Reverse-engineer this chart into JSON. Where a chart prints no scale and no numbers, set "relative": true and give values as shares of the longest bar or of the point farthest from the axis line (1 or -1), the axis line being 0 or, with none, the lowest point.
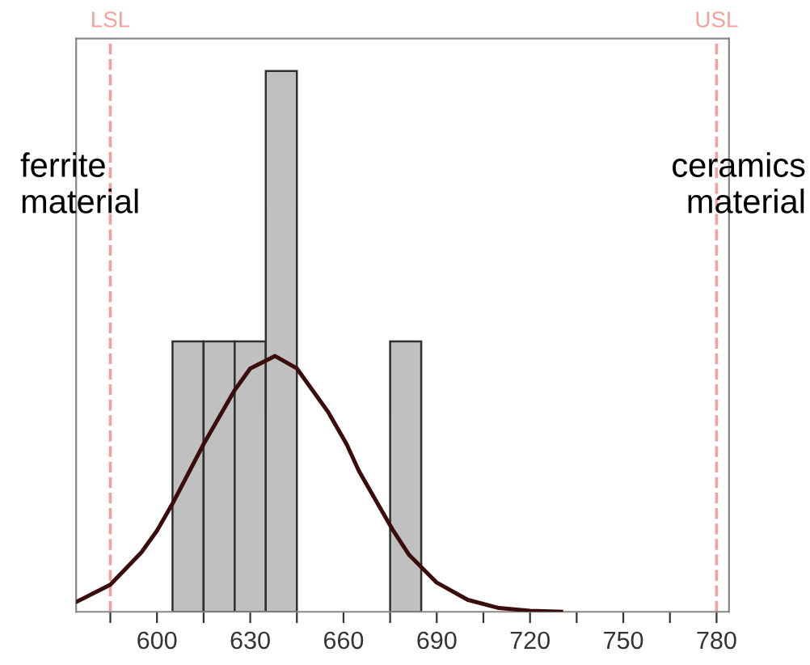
{
  "chart_data": {
    "type": "histogram",
    "relative": true,
    "bins": [
      605,
      615,
      625,
      635,
      645,
      655,
      665,
      675,
      685
    ],
    "values": [
      0.5,
      0.5,
      0.5,
      1,
      0,
      0,
      0,
      0.5
    ],
    "color": "#c0c0c0",
    "series": [
      {
        "type": "line",
        "color": "#3a0c0c",
        "line_style": "solid",
        "x": [
          574,
          585,
          595,
          600,
          605,
          615,
          625,
          630,
          638,
          645,
          655,
          661,
          665,
          676,
          681,
          690,
          700,
          710,
          720,
          730
        ],
        "values": [
          0.018,
          0.05,
          0.11,
          0.15,
          0.2,
          0.31,
          0.41,
          0.45,
          0.473,
          0.45,
          0.37,
          0.31,
          0.26,
          0.15,
          0.106,
          0.054,
          0.022,
          0.007,
          0.002,
          0.0
        ]
      }
    ],
    "xlim": [
      574,
      784
    ],
    "xticks": [
      {
        "value": 585,
        "label": null
      },
      600,
      {
        "value": 615,
        "label": null
      },
      630,
      {
        "value": 645,
        "label": null
      },
      660,
      {
        "value": 675,
        "label": null
      },
      690,
      {
        "value": 705,
        "label": null
      },
      720,
      {
        "value": 735,
        "label": null
      },
      750,
      {
        "value": 765,
        "label": null
      },
      780
    ],
    "tick_labels": "x",
    "ref_lines": [
      {
        "axis": "x",
        "value": 585,
        "label": "LSL",
        "color": "#f4a0a0",
        "line_style": "dashed"
      },
      {
        "axis": "x",
        "value": 780,
        "label": "USL",
        "color": "#f4a0a0",
        "line_style": "dashed"
      }
    ],
    "annotations": [
      "ferrite\nmaterial",
      "ceramics\nmaterial"
    ]
  }
}
